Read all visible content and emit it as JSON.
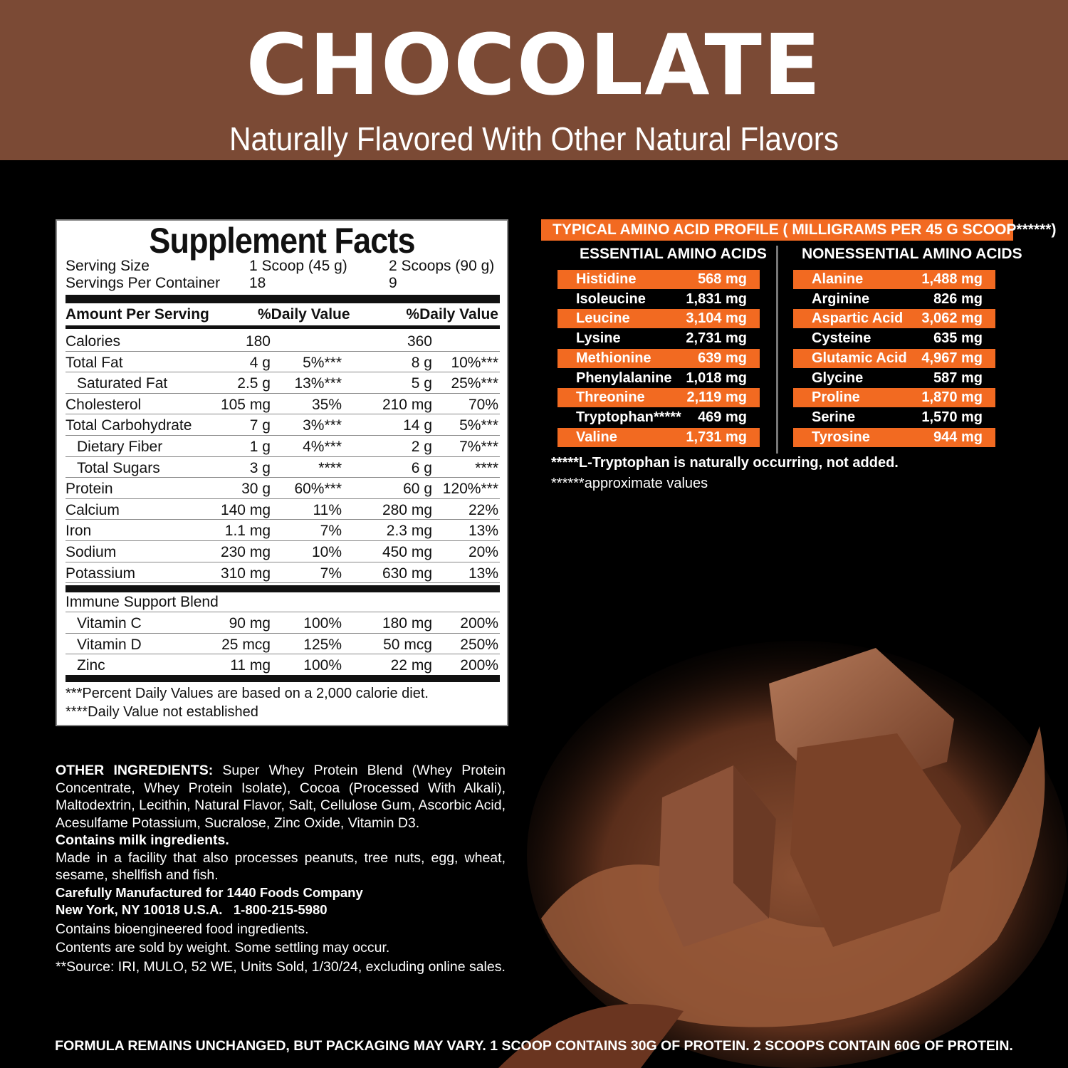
{
  "banner": {
    "title": "CHOCOLATE",
    "subtitle": "Naturally Flavored With Other Natural Flavors",
    "color": "#7b4a35"
  },
  "facts": {
    "title": "Supplement Facts",
    "serving_size_label": "Serving Size",
    "serving_size_1": "1 Scoop (45 g)",
    "serving_size_2": "2 Scoops (90 g)",
    "servings_label": "Servings Per Container",
    "servings_1": "18",
    "servings_2": "9",
    "amount_header": "Amount Per Serving",
    "dv_header_1": "%Daily Value",
    "dv_header_2": "%Daily Value",
    "rows": [
      {
        "label": "Calories",
        "a1": "180",
        "d1": "",
        "a2": "360",
        "d2": ""
      },
      {
        "label": "Total Fat",
        "a1": "4 g",
        "d1": "5%***",
        "a2": "8 g",
        "d2": "10%***"
      },
      {
        "label": "Saturated Fat",
        "a1": "2.5 g",
        "d1": "13%***",
        "a2": "5 g",
        "d2": "25%***"
      },
      {
        "label": "Cholesterol",
        "a1": "105 mg",
        "d1": "35%",
        "a2": "210 mg",
        "d2": "70%"
      },
      {
        "label": "Total Carbohydrate",
        "a1": "7 g",
        "d1": "3%***",
        "a2": "14 g",
        "d2": "5%***"
      },
      {
        "label": "Dietary Fiber",
        "a1": "1 g",
        "d1": "4%***",
        "a2": "2 g",
        "d2": "7%***"
      },
      {
        "label": "Total Sugars",
        "a1": "3 g",
        "d1": "****",
        "a2": "6 g",
        "d2": "****"
      },
      {
        "label": "Protein",
        "a1": "30 g",
        "d1": "60%***",
        "a2": "60 g",
        "d2": "120%***"
      },
      {
        "label": "Calcium",
        "a1": "140 mg",
        "d1": "11%",
        "a2": "280 mg",
        "d2": "22%"
      },
      {
        "label": "Iron",
        "a1": "1.1 mg",
        "d1": "7%",
        "a2": "2.3 mg",
        "d2": "13%"
      },
      {
        "label": "Sodium",
        "a1": "230 mg",
        "d1": "10%",
        "a2": "450 mg",
        "d2": "20%"
      },
      {
        "label": "Potassium",
        "a1": "310 mg",
        "d1": "7%",
        "a2": "630 mg",
        "d2": "13%"
      }
    ],
    "blend_label": "Immune Support Blend",
    "blend_rows": [
      {
        "label": "Vitamin C",
        "a1": "90 mg",
        "d1": "100%",
        "a2": "180 mg",
        "d2": "200%"
      },
      {
        "label": "Vitamin D",
        "a1": "25 mcg",
        "d1": "125%",
        "a2": "50 mcg",
        "d2": "250%"
      },
      {
        "label": "Zinc",
        "a1": "11 mg",
        "d1": "100%",
        "a2": "22 mg",
        "d2": "200%"
      }
    ],
    "footnote_1": "***Percent Daily Values are based on a 2,000 calorie diet.",
    "footnote_2": "****Daily Value not established"
  },
  "amino": {
    "header": "TYPICAL AMINO ACID PROFILE ( MILLIGRAMS PER 45 G SCOOP******)",
    "accent": "#f26a21",
    "essential_title": "ESSENTIAL AMINO ACIDS",
    "nonessential_title": "NONESSENTIAL AMINO ACIDS",
    "essential": [
      {
        "name": "Histidine",
        "value": "568 mg"
      },
      {
        "name": "Isoleucine",
        "value": "1,831 mg"
      },
      {
        "name": "Leucine",
        "value": "3,104 mg"
      },
      {
        "name": "Lysine",
        "value": "2,731 mg"
      },
      {
        "name": "Methionine",
        "value": "639 mg"
      },
      {
        "name": "Phenylalanine",
        "value": "1,018 mg"
      },
      {
        "name": "Threonine",
        "value": "2,119 mg"
      },
      {
        "name": "Tryptophan*****",
        "value": "469 mg"
      },
      {
        "name": "Valine",
        "value": "1,731 mg"
      }
    ],
    "nonessential": [
      {
        "name": "Alanine",
        "value": "1,488 mg"
      },
      {
        "name": "Arginine",
        "value": "826 mg"
      },
      {
        "name": "Aspartic Acid",
        "value": "3,062 mg"
      },
      {
        "name": "Cysteine",
        "value": "635 mg"
      },
      {
        "name": "Glutamic Acid",
        "value": "4,967 mg"
      },
      {
        "name": "Glycine",
        "value": "587 mg"
      },
      {
        "name": "Proline",
        "value": "1,870 mg"
      },
      {
        "name": "Serine",
        "value": "1,570 mg"
      },
      {
        "name": "Tyrosine",
        "value": "944 mg"
      }
    ],
    "note_1": "*****L-Tryptophan is naturally occurring, not added.",
    "note_2": "******approximate values"
  },
  "ingredients": {
    "label": "OTHER INGREDIENTS:",
    "text": " Super Whey Protein Blend (Whey Protein Concentrate, Whey Protein Isolate), Cocoa (Processed With Alkali), Maltodextrin, Lecithin, Natural Flavor, Salt, Cellulose Gum, Ascorbic Acid, Acesulfame Potassium, Sucralose, Zinc Oxide, Vitamin D3.",
    "milk": "Contains milk ingredients.",
    "facility": "Made in a facility that also processes peanuts, tree nuts, egg, wheat, sesame, shellfish and fish.",
    "mfr_1": "Carefully Manufactured for 1440 Foods Company",
    "mfr_2": "New York, NY 10018 U.S.A.   1-800-215-5980",
    "bio": "Contains bioengineered food ingredients.",
    "weight": "Contents are sold by weight. Some settling may occur.",
    "source": "**Source: IRI, MULO, 52 WE, Units Sold, 1/30/24, excluding online sales."
  },
  "bottom_text": "FORMULA REMAINS UNCHANGED, BUT PACKAGING MAY VARY. 1 SCOOP CONTAINS 30G OF PROTEIN. 2 SCOOPS CONTAIN 60G OF PROTEIN."
}
